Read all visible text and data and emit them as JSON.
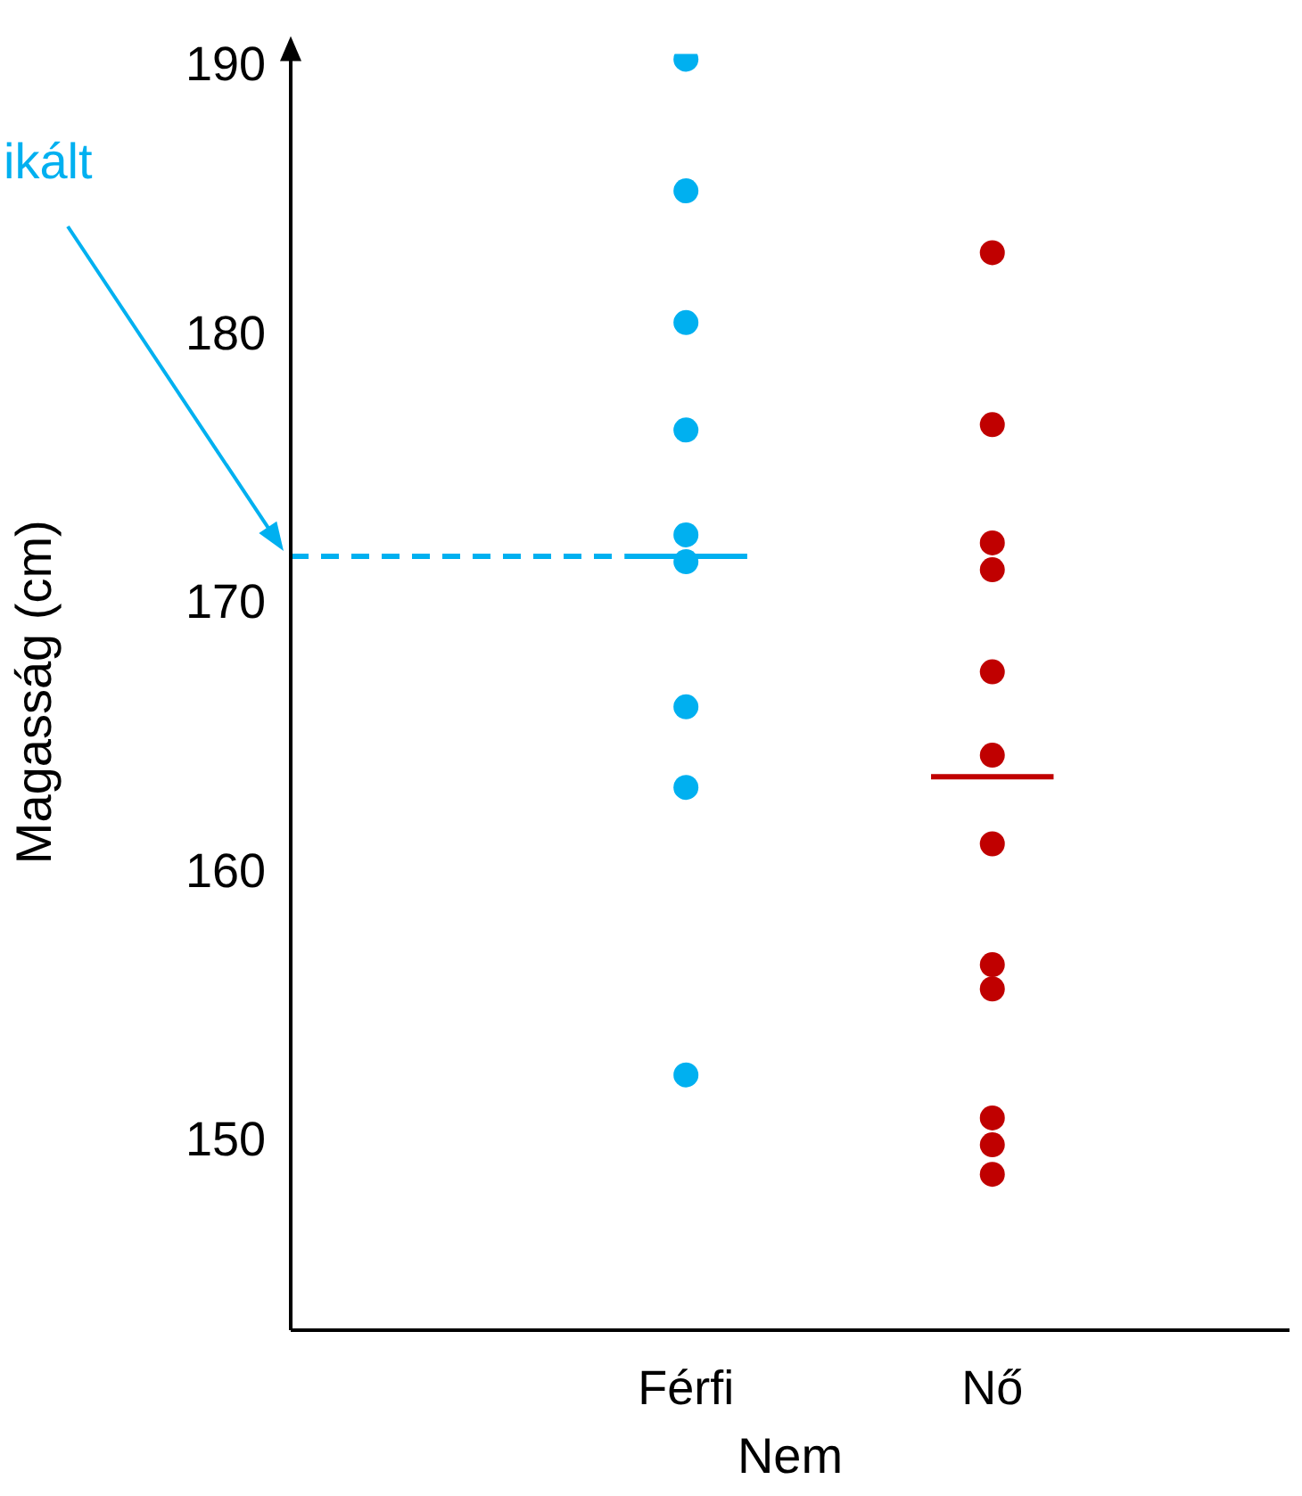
{
  "chart_data": {
    "type": "scatter",
    "xlabel": "Nem",
    "ylabel": "Magasság (cm)",
    "categories": [
      "Férfi",
      "Nő"
    ],
    "ylim": [
      143,
      190.5
    ],
    "yticks": [
      150,
      160,
      170,
      180,
      190
    ],
    "grid": false,
    "legend": false,
    "marker": "circle",
    "series": [
      {
        "color": "#00b0f0",
        "x": [
          "Férfi",
          "Férfi",
          "Férfi",
          "Férfi",
          "Férfi",
          "Férfi",
          "Férfi",
          "Férfi",
          "Férfi"
        ],
        "values": [
          190.3,
          185.4,
          180.5,
          176.5,
          172.6,
          171.6,
          166.2,
          163.2,
          152.5
        ]
      },
      {
        "color": "#c00000",
        "x": [
          "Nő",
          "Nő",
          "Nő",
          "Nő",
          "Nő",
          "Nő",
          "Nő",
          "Nő",
          "Nő",
          "Nő",
          "Nő",
          "Nő"
        ],
        "values": [
          183.1,
          176.7,
          172.3,
          171.3,
          167.5,
          164.4,
          161.1,
          156.6,
          155.7,
          150.9,
          149.9,
          148.8
        ]
      }
    ],
    "ref_lines": [
      {
        "axis": "y",
        "value": 171.8,
        "label": "ikált",
        "color": "#00b0f0",
        "line_style": "dashed"
      },
      {
        "axis": "y",
        "value": 171.8,
        "color": "#00b0f0",
        "line_style": "solid"
      },
      {
        "axis": "y",
        "value": 163.6,
        "color": "#c00000",
        "line_style": "solid"
      }
    ]
  }
}
